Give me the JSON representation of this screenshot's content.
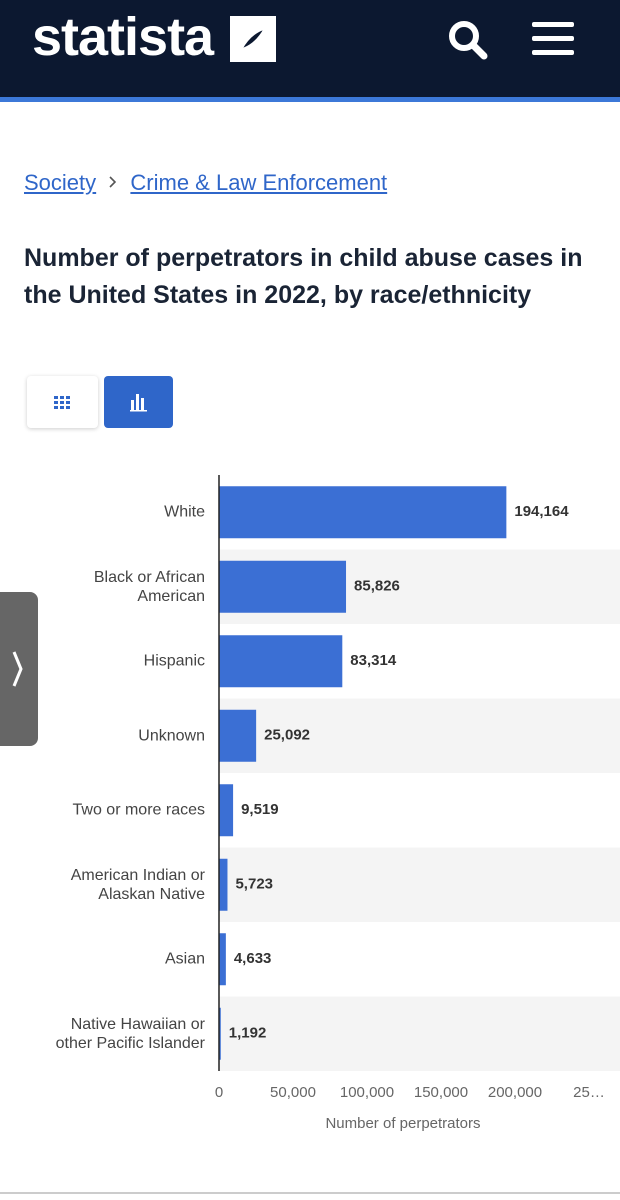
{
  "header": {
    "logo": "statista"
  },
  "breadcrumb": [
    "Society",
    "Crime & Law Enforcement"
  ],
  "chart_data": {
    "type": "bar",
    "orientation": "horizontal",
    "title": "Number of perpetrators in child abuse cases in the United States in 2022, by race/ethnicity",
    "categories": [
      "White",
      "Black or African American",
      "Hispanic",
      "Unknown",
      "Two or more races",
      "American Indian or Alaskan Native",
      "Asian",
      "Native Hawaiian or other Pacific Islander"
    ],
    "values": [
      194164,
      85826,
      83314,
      25092,
      9519,
      5723,
      4633,
      1192
    ],
    "value_labels": [
      "194,164",
      "85,826",
      "83,314",
      "25,092",
      "9,519",
      "5,723",
      "4,633",
      "1,192"
    ],
    "color": "#3b6fd4",
    "xlim": [
      0,
      250000
    ],
    "xticks": [
      0,
      {
        "value": 50000,
        "label": "50,000"
      },
      {
        "value": 100000,
        "label": "100,000"
      },
      {
        "value": 150000,
        "label": "150,000"
      },
      {
        "value": 200000,
        "label": "200,000"
      },
      {
        "value": 250000,
        "label": "25…"
      }
    ],
    "x_label": "Number of perpetrators",
    "grid": false
  }
}
